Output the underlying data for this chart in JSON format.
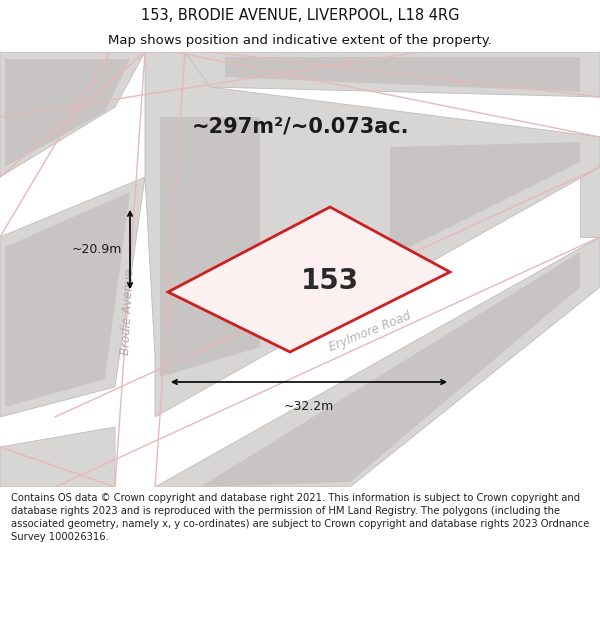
{
  "title_line1": "153, BRODIE AVENUE, LIVERPOOL, L18 4RG",
  "title_line2": "Map shows position and indicative extent of the property.",
  "area_label": "~297m²/~0.073ac.",
  "property_number": "153",
  "width_label": "~32.2m",
  "height_label": "~20.9m",
  "footer_text": "Contains OS data © Crown copyright and database right 2021. This information is subject to Crown copyright and database rights 2023 and is reproduced with the permission of HM Land Registry. The polygons (including the associated geometry, namely x, y co-ordinates) are subject to Crown copyright and database rights 2023 Ordnance Survey 100026316.",
  "bg_color": "#ffffff",
  "map_bg_color": "#f2f0f0",
  "street_color": "#ffffff",
  "building_fill": "#d8d5d5",
  "building_edge": "#c0bcbc",
  "road_line_color": "#e8b8b8",
  "property_fill": "#fcf0f0",
  "property_edge": "#cc2020",
  "title_fontsize": 10.5,
  "subtitle_fontsize": 9.5,
  "footer_fontsize": 7.2,
  "area_fontsize": 15,
  "number_fontsize": 20,
  "dim_fontsize": 9,
  "street_label_fontsize": 8.5
}
